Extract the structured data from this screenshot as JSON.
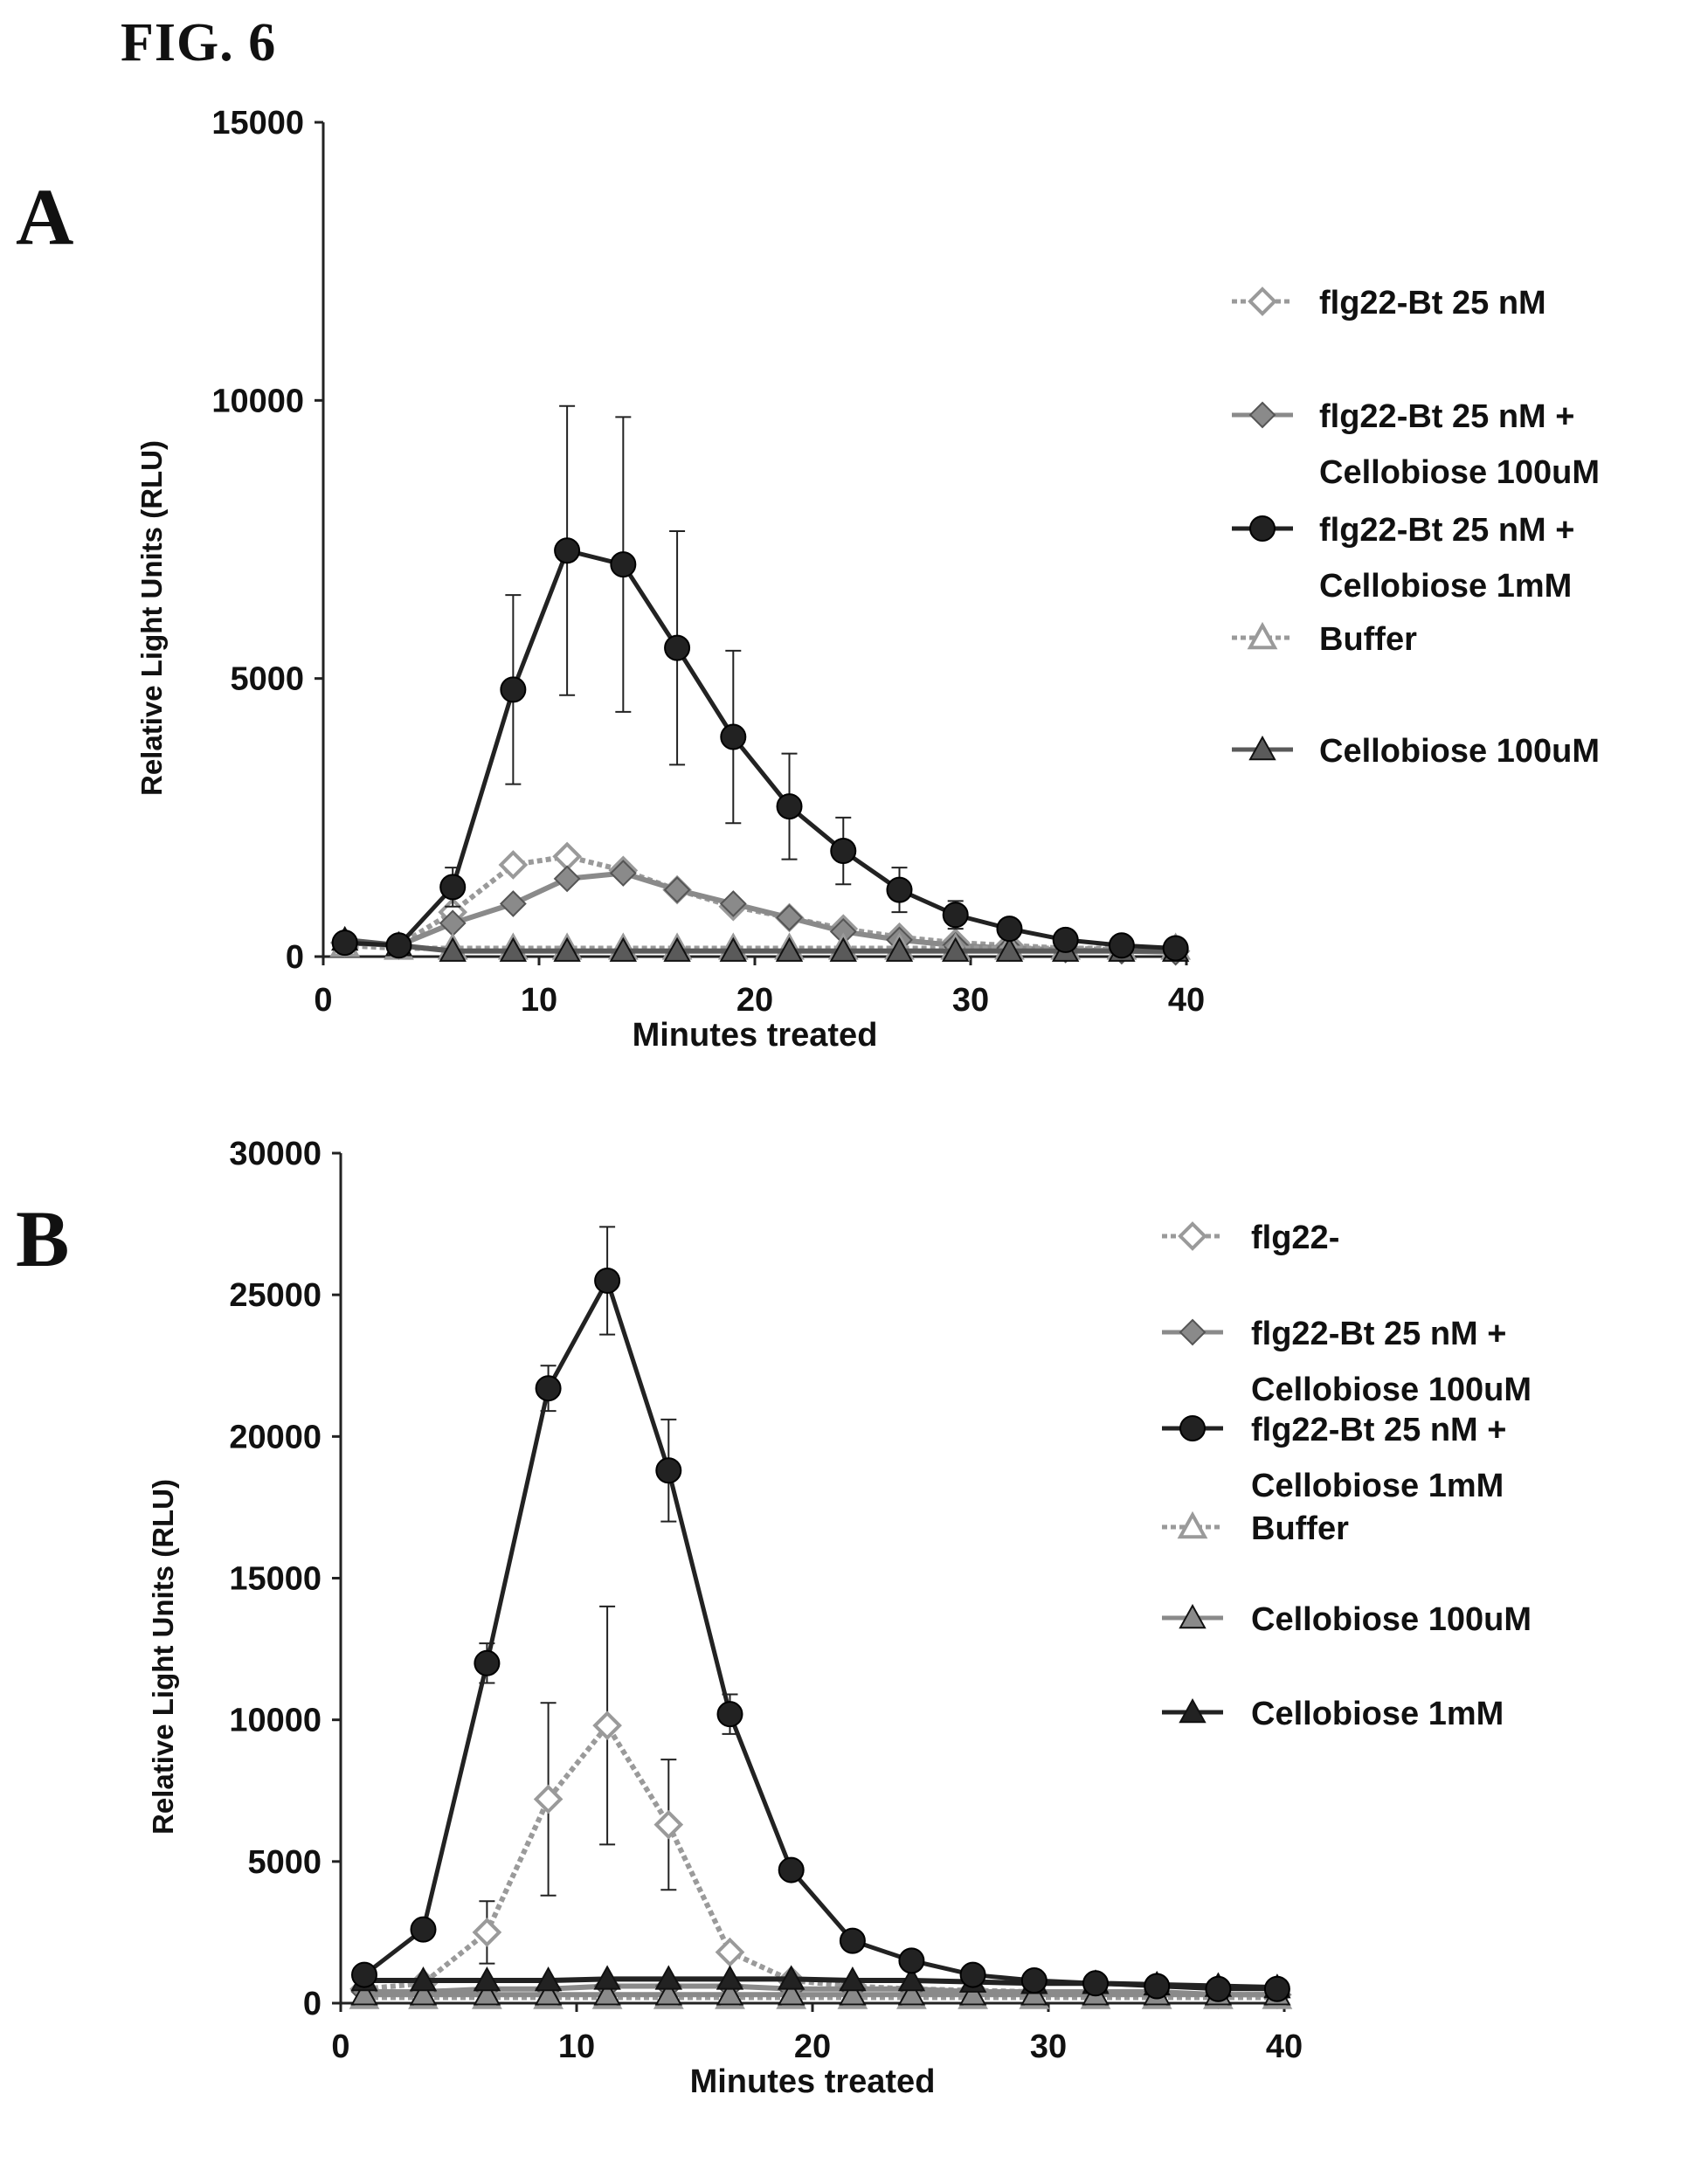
{
  "figure": {
    "title": "FIG. 6"
  },
  "chart_data": [
    {
      "panel": "A",
      "type": "line",
      "xlabel": "Minutes treated",
      "ylabel": "Relative Light Units (RLU)",
      "xlim": [
        0,
        40
      ],
      "ylim": [
        0,
        15000
      ],
      "xticks": [
        0,
        10,
        20,
        30,
        40
      ],
      "yticks": [
        0,
        5000,
        10000,
        15000
      ],
      "legend_position": "right",
      "x": [
        1,
        3.5,
        6,
        8.8,
        11.3,
        13.9,
        16.4,
        19,
        21.6,
        24.1,
        26.7,
        29.3,
        31.8,
        34.4,
        37,
        39.5
      ],
      "series": [
        {
          "name": "flg22-Bt 25 nM",
          "marker": "open-diamond",
          "color": "#9a9a9a",
          "dash": true,
          "values": [
            250,
            200,
            800,
            1650,
            1800,
            1550,
            1200,
            900,
            700,
            500,
            350,
            250,
            200,
            150,
            120,
            100
          ]
        },
        {
          "name": "flg22-Bt 25 nM + Cellobiose 100uM",
          "marker": "filled-diamond",
          "color": "#8a8a8a",
          "dash": false,
          "values": [
            250,
            200,
            600,
            950,
            1400,
            1500,
            1200,
            950,
            700,
            450,
            300,
            200,
            150,
            120,
            100,
            80
          ]
        },
        {
          "name": "flg22-Bt 25 nM + Cellobiose 1mM",
          "marker": "filled-circle",
          "color": "#222222",
          "dash": false,
          "values": [
            250,
            200,
            1250,
            4800,
            7300,
            7050,
            5550,
            3950,
            2700,
            1900,
            1200,
            750,
            500,
            300,
            200,
            150
          ],
          "errors": [
            0,
            0,
            350,
            1700,
            2600,
            2650,
            2100,
            1550,
            950,
            600,
            400,
            250,
            0,
            0,
            0,
            0
          ]
        },
        {
          "name": "Buffer",
          "marker": "open-triangle",
          "color": "#9a9a9a",
          "dash": true,
          "values": [
            200,
            150,
            150,
            150,
            150,
            150,
            150,
            150,
            150,
            150,
            150,
            150,
            150,
            150,
            150,
            150
          ]
        },
        {
          "name": "Cellobiose 100uM",
          "marker": "filled-triangle",
          "color": "#5a5a5a",
          "dash": false,
          "values": [
            300,
            200,
            100,
            100,
            100,
            100,
            100,
            100,
            100,
            100,
            100,
            100,
            100,
            100,
            100,
            100
          ]
        }
      ],
      "legend": [
        {
          "lines": [
            "flg22-Bt 25 nM"
          ],
          "series_index": 0
        },
        {
          "lines": [
            "flg22-Bt 25 nM +",
            "Cellobiose 100uM"
          ],
          "series_index": 1
        },
        {
          "lines": [
            "flg22-Bt 25 nM +",
            "Cellobiose 1mM"
          ],
          "series_index": 2
        },
        {
          "lines": [
            "Buffer"
          ],
          "series_index": 3
        },
        {
          "lines": [
            "Cellobiose 100uM"
          ],
          "series_index": 4
        }
      ]
    },
    {
      "panel": "B",
      "type": "line",
      "xlabel": "Minutes treated",
      "ylabel": "Relative Light Units (RLU)",
      "xlim": [
        0,
        40
      ],
      "ylim": [
        0,
        30000
      ],
      "xticks": [
        0,
        10,
        20,
        30,
        40
      ],
      "yticks": [
        0,
        5000,
        10000,
        15000,
        20000,
        25000,
        30000
      ],
      "legend_position": "right",
      "x": [
        1,
        3.5,
        6.2,
        8.8,
        11.3,
        13.9,
        16.5,
        19.1,
        21.7,
        24.2,
        26.8,
        29.4,
        32,
        34.6,
        37.2,
        39.7
      ],
      "series": [
        {
          "name": "flg22-",
          "marker": "open-diamond",
          "color": "#9a9a9a",
          "dash": true,
          "values": [
            500,
            700,
            2500,
            7200,
            9800,
            6300,
            1800,
            800,
            600,
            500,
            450,
            400,
            400,
            350,
            300,
            300
          ],
          "errors": [
            0,
            0,
            1100,
            3400,
            4200,
            2300,
            0,
            0,
            0,
            0,
            0,
            0,
            0,
            0,
            0,
            0
          ]
        },
        {
          "name": "flg22-Bt 25 nM + Cellobiose 100uM",
          "marker": "filled-diamond",
          "color": "#8a8a8a",
          "dash": false,
          "values": [
            400,
            400,
            500,
            500,
            600,
            600,
            600,
            500,
            500,
            500,
            400,
            400,
            400,
            400,
            300,
            300
          ]
        },
        {
          "name": "flg22-Bt 25 nM + Cellobiose 1mM",
          "marker": "filled-circle",
          "color": "#222222",
          "dash": false,
          "values": [
            1000,
            2600,
            12000,
            21700,
            25500,
            18800,
            10200,
            4700,
            2200,
            1500,
            1000,
            800,
            700,
            600,
            500,
            500
          ],
          "errors": [
            0,
            0,
            700,
            800,
            1900,
            1800,
            700,
            0,
            0,
            0,
            0,
            0,
            0,
            0,
            0,
            0
          ]
        },
        {
          "name": "Buffer",
          "marker": "open-triangle",
          "color": "#9a9a9a",
          "dash": true,
          "values": [
            200,
            200,
            200,
            200,
            200,
            200,
            200,
            200,
            200,
            200,
            200,
            200,
            200,
            200,
            200,
            200
          ]
        },
        {
          "name": "Cellobiose 100uM",
          "marker": "filled-triangle",
          "color": "#8a8a8a",
          "dash": false,
          "values": [
            300,
            300,
            300,
            300,
            300,
            300,
            300,
            300,
            300,
            300,
            300,
            300,
            300,
            300,
            300,
            300
          ]
        },
        {
          "name": "Cellobiose 1mM",
          "marker": "filled-triangle",
          "color": "#222222",
          "dash": false,
          "values": [
            800,
            800,
            800,
            800,
            850,
            850,
            850,
            850,
            800,
            800,
            750,
            700,
            700,
            650,
            600,
            550
          ]
        }
      ],
      "legend": [
        {
          "lines": [
            "flg22-"
          ],
          "series_index": 0
        },
        {
          "lines": [
            "flg22-Bt 25 nM +",
            "Cellobiose 100uM"
          ],
          "series_index": 1
        },
        {
          "lines": [
            "flg22-Bt 25 nM +",
            "Cellobiose 1mM"
          ],
          "series_index": 2
        },
        {
          "lines": [
            "Buffer"
          ],
          "series_index": 3
        },
        {
          "lines": [
            "Cellobiose 100uM"
          ],
          "series_index": 4
        },
        {
          "lines": [
            "Cellobiose 1mM"
          ],
          "series_index": 5
        }
      ]
    }
  ]
}
